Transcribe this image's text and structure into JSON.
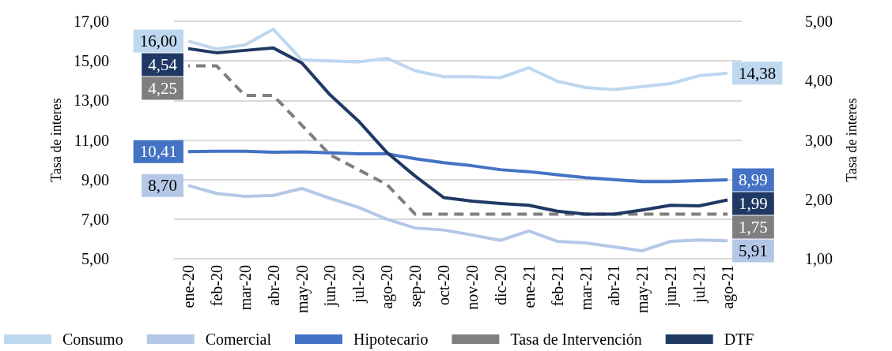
{
  "chart_data": {
    "type": "line",
    "ylabel": "Tasa de interes",
    "y2label": "Tasa de interes",
    "categories": [
      "ene-20",
      "feb-20",
      "mar-20",
      "abr-20",
      "may-20",
      "jun-20",
      "jul-20",
      "ago-20",
      "sep-20",
      "oct-20",
      "nov-20",
      "dic-20",
      "ene-21",
      "feb-21",
      "mar-21",
      "abr-21",
      "may-21",
      "jun-21",
      "jul-21",
      "ago-21"
    ],
    "series": [
      {
        "name": "Consumo",
        "color": "#bdd7ee",
        "values": [
          16.0,
          15.6,
          15.8,
          16.6,
          15.05,
          15.0,
          14.95,
          15.13,
          14.5,
          14.2,
          14.2,
          14.15,
          14.65,
          13.97,
          13.65,
          13.55,
          13.7,
          13.85,
          14.25,
          14.38
        ],
        "value_labels": [
          "16,00",
          null,
          null,
          null,
          null,
          null,
          null,
          null,
          null,
          null,
          null,
          null,
          null,
          null,
          null,
          null,
          null,
          null,
          null,
          "14,38"
        ]
      },
      {
        "name": "Comercial",
        "color": "#b4c7e7",
        "values": [
          8.7,
          8.3,
          8.15,
          8.2,
          8.55,
          8.05,
          7.6,
          7.0,
          6.55,
          6.45,
          6.2,
          5.93,
          6.4,
          5.88,
          5.8,
          5.6,
          5.4,
          5.88,
          5.95,
          5.91
        ],
        "value_labels": [
          "8,70",
          null,
          null,
          null,
          null,
          null,
          null,
          null,
          null,
          null,
          null,
          null,
          null,
          null,
          null,
          null,
          null,
          null,
          null,
          "5,91"
        ]
      },
      {
        "name": "Hipotecario",
        "color": "#4472c4",
        "values": [
          10.41,
          10.43,
          10.43,
          10.38,
          10.4,
          10.35,
          10.3,
          10.3,
          10.05,
          9.85,
          9.7,
          9.5,
          9.4,
          9.25,
          9.1,
          9.0,
          8.9,
          8.9,
          8.95,
          8.99
        ],
        "value_labels": [
          "10,41",
          null,
          null,
          null,
          null,
          null,
          null,
          null,
          null,
          null,
          null,
          null,
          null,
          null,
          null,
          null,
          null,
          null,
          null,
          "8,99"
        ]
      },
      {
        "name": "Tasa de Intervención",
        "color": "#7f7f7f",
        "axis": "y2",
        "line_style": "dashed",
        "values": [
          4.25,
          4.25,
          3.75,
          3.75,
          3.25,
          2.75,
          2.5,
          2.25,
          1.75,
          1.75,
          1.75,
          1.75,
          1.75,
          1.75,
          1.75,
          1.75,
          1.75,
          1.75,
          1.75,
          1.75
        ],
        "value_labels": [
          "4,25",
          null,
          null,
          null,
          null,
          null,
          null,
          null,
          null,
          null,
          null,
          null,
          null,
          null,
          null,
          null,
          null,
          null,
          null,
          "1,75"
        ]
      },
      {
        "name": "DTF",
        "color": "#203864",
        "axis": "y2",
        "values": [
          4.54,
          4.47,
          4.51,
          4.55,
          4.3,
          3.76,
          3.32,
          2.79,
          2.39,
          2.03,
          1.97,
          1.93,
          1.9,
          1.8,
          1.75,
          1.75,
          1.82,
          1.9,
          1.89,
          1.99
        ],
        "value_labels": [
          "4,54",
          null,
          null,
          null,
          null,
          null,
          null,
          null,
          null,
          null,
          null,
          null,
          null,
          null,
          null,
          null,
          null,
          null,
          null,
          "1,99"
        ]
      }
    ],
    "ylim": [
      5,
      17
    ],
    "yticks": [
      {
        "value": 5,
        "label": "5,00"
      },
      {
        "value": 7,
        "label": "7,00"
      },
      {
        "value": 9,
        "label": "9,00"
      },
      {
        "value": 11,
        "label": "11,00"
      },
      {
        "value": 13,
        "label": "13,00"
      },
      {
        "value": 15,
        "label": "15,00"
      },
      {
        "value": 17,
        "label": "17,00"
      }
    ],
    "y2lim": [
      1,
      5
    ],
    "y2ticks": [
      {
        "value": 1,
        "label": "1,00"
      },
      {
        "value": 2,
        "label": "2,00"
      },
      {
        "value": 3,
        "label": "3,00"
      },
      {
        "value": 4,
        "label": "4,00"
      },
      {
        "value": 5,
        "label": "5,00"
      }
    ],
    "grid": "y",
    "legend": "bottom",
    "marker": "none",
    "line_style": "solid"
  }
}
